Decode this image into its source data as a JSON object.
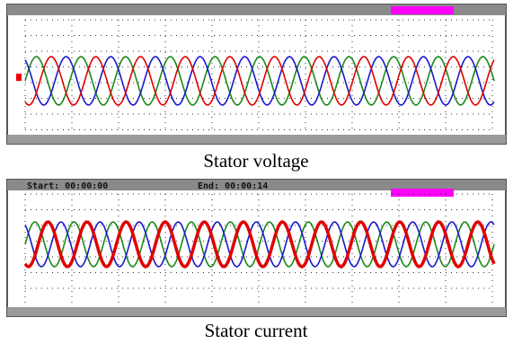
{
  "figures": [
    {
      "caption": "Stator voltage"
    },
    {
      "header_start": "Start: 00:00:00",
      "header_end": "End: 00:00:14",
      "caption": "Stator current"
    }
  ]
}
